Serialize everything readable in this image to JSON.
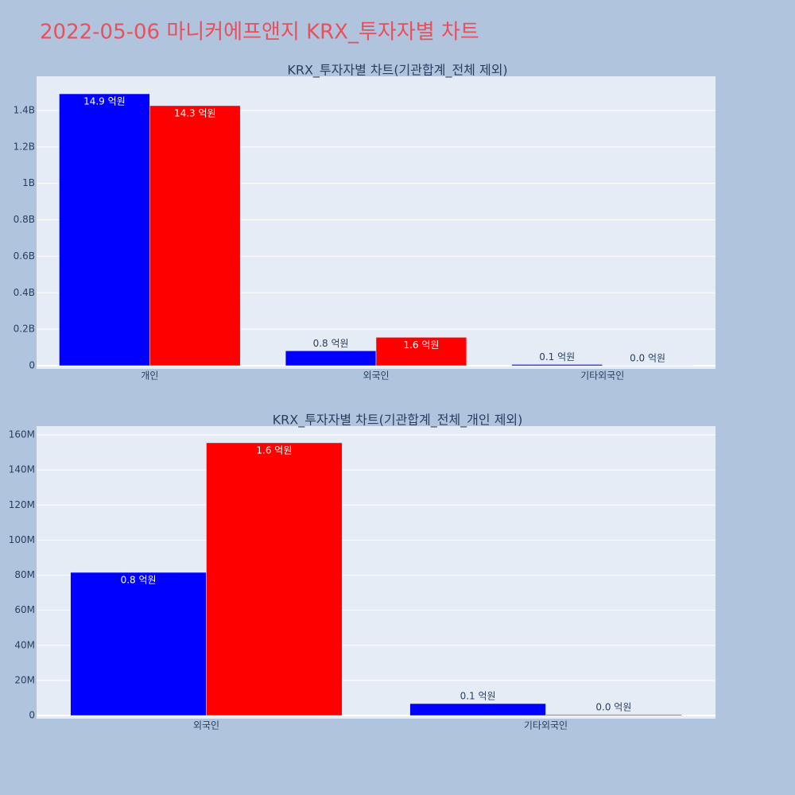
{
  "title": "2022-05-06 마니커에프앤지 KRX_투자자별 차트",
  "chart_data": [
    {
      "type": "bar",
      "title": "KRX_투자자별 차트(기관합계_전체 제외)",
      "categories": [
        "개인",
        "외국인",
        "기타외국인"
      ],
      "series": [
        {
          "color": "#0000ff",
          "values": [
            1491000000,
            81600000,
            6800000
          ],
          "value_labels": [
            "14.9 억원",
            "0.8 억원",
            "0.1 억원"
          ]
        },
        {
          "color": "#ff0000",
          "values": [
            1426000000,
            155500000,
            500000
          ],
          "value_labels": [
            "14.3 억원",
            "1.6 억원",
            "0.0 억원"
          ]
        }
      ],
      "ylim": [
        -17400000,
        1587000000
      ],
      "yticks": [
        0,
        {
          "value": 200000000,
          "label": "0.2B"
        },
        {
          "value": 400000000,
          "label": "0.4B"
        },
        {
          "value": 600000000,
          "label": "0.6B"
        },
        {
          "value": 800000000,
          "label": "0.8B"
        },
        {
          "value": 1000000000,
          "label": "1B"
        },
        {
          "value": 1200000000,
          "label": "1.2B"
        },
        {
          "value": 1400000000,
          "label": "1.4B"
        }
      ],
      "grid": true
    },
    {
      "type": "bar",
      "title": "KRX_투자자별 차트(기관합계_전체_개인 제외)",
      "categories": [
        "외국인",
        "기타외국인"
      ],
      "series": [
        {
          "color": "#0000ff",
          "values": [
            81600000,
            6800000
          ],
          "value_labels": [
            "0.8 억원",
            "0.1 억원"
          ]
        },
        {
          "color": "#ff0000",
          "values": [
            155500000,
            500000
          ],
          "value_labels": [
            "1.6 억원",
            "0.0 억원"
          ]
        }
      ],
      "ylim": [
        -1800000,
        165000000
      ],
      "yticks": [
        0,
        {
          "value": 20000000,
          "label": "20M"
        },
        {
          "value": 40000000,
          "label": "40M"
        },
        {
          "value": 60000000,
          "label": "60M"
        },
        {
          "value": 80000000,
          "label": "80M"
        },
        {
          "value": 100000000,
          "label": "100M"
        },
        {
          "value": 120000000,
          "label": "120M"
        },
        {
          "value": 140000000,
          "label": "140M"
        },
        {
          "value": 160000000,
          "label": "160M"
        }
      ],
      "grid": true
    }
  ]
}
